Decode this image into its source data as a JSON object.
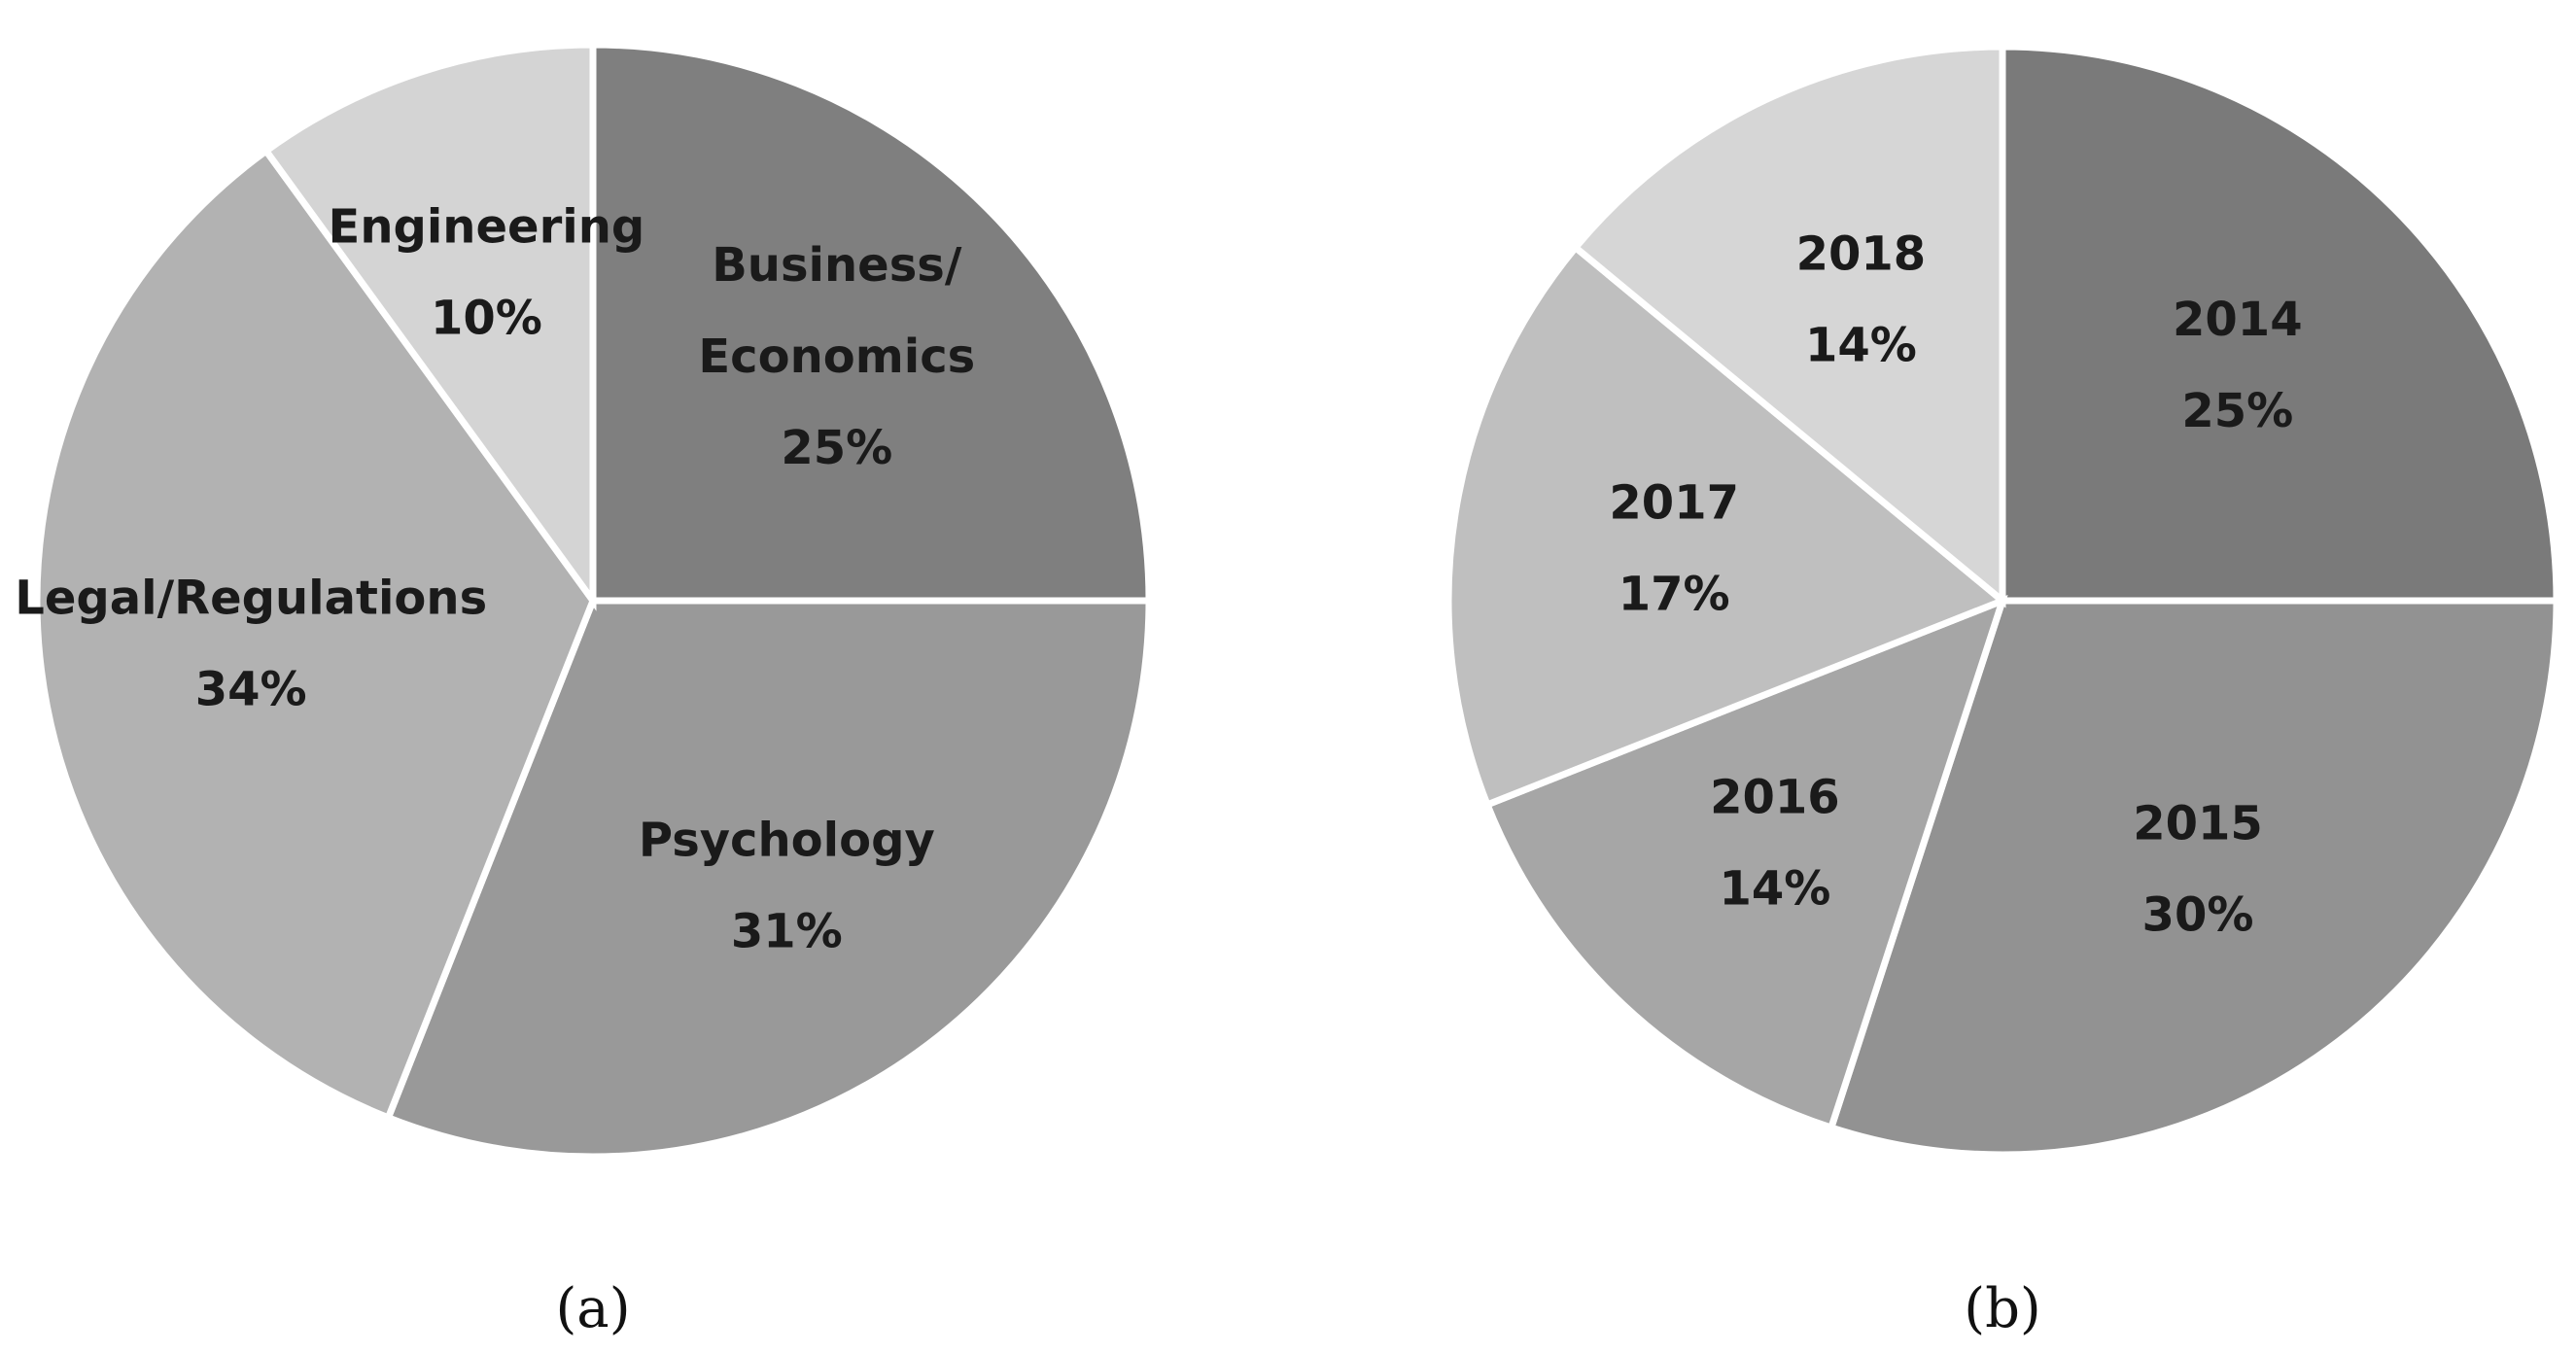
{
  "chart_data": [
    {
      "type": "pie",
      "caption": "(a)",
      "slices": [
        {
          "label_lines": [
            "Business/",
            "Economics"
          ],
          "percent_label": "25%",
          "value": 25,
          "color": "#7f7f7f"
        },
        {
          "label_lines": [
            "Psychology"
          ],
          "percent_label": "31%",
          "value": 31,
          "color": "#999999"
        },
        {
          "label_lines": [
            "Legal/Regulations"
          ],
          "percent_label": "34%",
          "value": 34,
          "color": "#b2b2b2"
        },
        {
          "label_lines": [
            "Engineering"
          ],
          "percent_label": "10%",
          "value": 10,
          "color": "#d4d4d4"
        }
      ]
    },
    {
      "type": "pie",
      "caption": "(b)",
      "slices": [
        {
          "label_lines": [
            "2014"
          ],
          "percent_label": "25%",
          "value": 25,
          "color": "#7a7a7a"
        },
        {
          "label_lines": [
            "2015"
          ],
          "percent_label": "30%",
          "value": 30,
          "color": "#929292"
        },
        {
          "label_lines": [
            "2016"
          ],
          "percent_label": "14%",
          "value": 14,
          "color": "#a6a6a6"
        },
        {
          "label_lines": [
            "2017"
          ],
          "percent_label": "17%",
          "value": 17,
          "color": "#bfbfbf"
        },
        {
          "label_lines": [
            "2018"
          ],
          "percent_label": "14%",
          "value": 14,
          "color": "#d6d6d6"
        }
      ]
    }
  ]
}
